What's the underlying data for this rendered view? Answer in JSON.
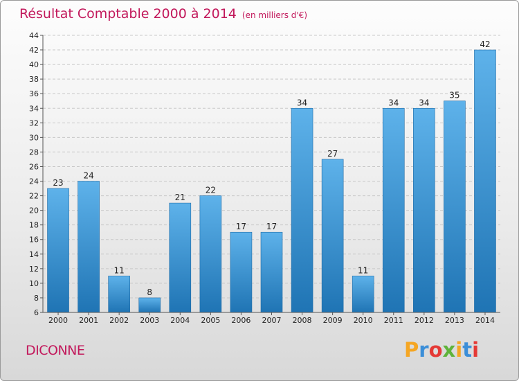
{
  "chart_data": {
    "type": "bar",
    "title": "Résultat Comptable 2000 à 2014",
    "subtitle": "(en milliers d'€)",
    "categories": [
      "2000",
      "2001",
      "2002",
      "2003",
      "2004",
      "2005",
      "2006",
      "2007",
      "2008",
      "2009",
      "2010",
      "2011",
      "2012",
      "2013",
      "2014"
    ],
    "values": [
      23,
      24,
      11,
      8,
      21,
      22,
      17,
      17,
      34,
      27,
      11,
      34,
      34,
      35,
      42
    ],
    "ylim": [
      6,
      44
    ],
    "yticks": [
      6,
      8,
      10,
      12,
      14,
      16,
      18,
      20,
      22,
      24,
      26,
      28,
      30,
      32,
      34,
      36,
      38,
      40,
      42,
      44
    ],
    "grid": true,
    "xlabel": "",
    "ylabel": ""
  },
  "commune": "DICONNE",
  "logo": {
    "letters": [
      "P",
      "r",
      "o",
      "x",
      "i",
      "t",
      "i"
    ],
    "colors": [
      "#f5a623",
      "#3b8ed8",
      "#e53935",
      "#5fb33a",
      "#f5a623",
      "#3b8ed8",
      "#e53935"
    ]
  },
  "colors": {
    "title": "#c2185b",
    "bar_light": "#5aaee6",
    "bar_dark": "#1f74b4"
  }
}
